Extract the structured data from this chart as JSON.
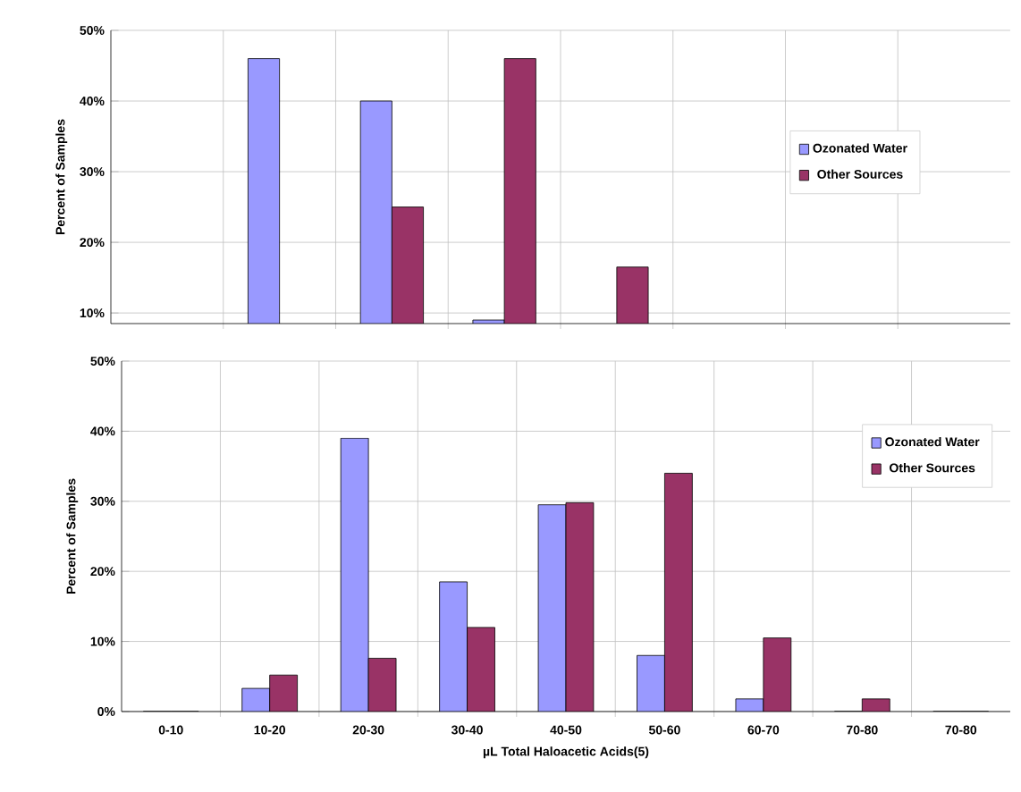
{
  "chart_data": [
    {
      "type": "bar",
      "ylabel": "Percent of Samples",
      "categories": [
        null,
        null,
        null,
        null,
        null,
        null,
        null,
        null
      ],
      "tick_labels": "y",
      "grid": true,
      "legend": "right",
      "ylim": [
        8.5,
        50
      ],
      "yticks": [
        {
          "value": 10,
          "label": "10%"
        },
        {
          "value": 20,
          "label": "20%"
        },
        {
          "value": 30,
          "label": "30%"
        },
        {
          "value": 40,
          "label": "40%"
        },
        {
          "value": 50,
          "label": "50%"
        }
      ],
      "series": [
        {
          "name": "Ozonated Water",
          "color": "#9999ff",
          "values": [
            null,
            46,
            40,
            9,
            null,
            null,
            null,
            null
          ]
        },
        {
          "name": "Other Sources",
          "color": "#993366",
          "values": [
            null,
            null,
            25,
            46,
            16.5,
            null,
            null,
            null
          ]
        }
      ]
    },
    {
      "type": "bar",
      "ylabel": "Percent of Samples",
      "xlabel": "µL Total Haloacetic Acids(5)",
      "categories": [
        "0-10",
        "10-20",
        "20-30",
        "30-40",
        "40-50",
        "50-60",
        "60-70",
        "70-80",
        "70-80"
      ],
      "grid": true,
      "legend": "top right",
      "ylim": [
        0,
        50
      ],
      "yticks": [
        {
          "value": 0,
          "label": "0%"
        },
        {
          "value": 10,
          "label": "10%"
        },
        {
          "value": 20,
          "label": "20%"
        },
        {
          "value": 30,
          "label": "30%"
        },
        {
          "value": 40,
          "label": "40%"
        },
        {
          "value": 50,
          "label": "50%"
        }
      ],
      "series": [
        {
          "name": "Ozonated Water",
          "color": "#9999ff",
          "values": [
            0,
            3.3,
            39,
            18.5,
            29.5,
            8,
            1.8,
            0,
            0
          ]
        },
        {
          "name": "Other Sources",
          "color": "#993366",
          "values": [
            0,
            5.2,
            7.6,
            12,
            29.8,
            34,
            10.5,
            1.8,
            0
          ]
        }
      ]
    }
  ]
}
